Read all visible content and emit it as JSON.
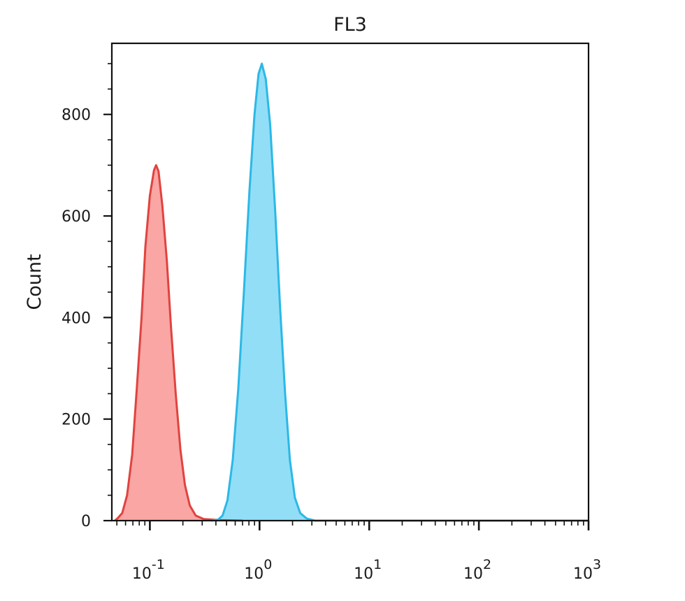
{
  "chart_data": {
    "type": "area",
    "title": "FL3",
    "xlabel": "",
    "ylabel": "Count",
    "x_scale": "log",
    "xlim": [
      0.045,
      1000
    ],
    "ylim": [
      0,
      940
    ],
    "grid": false,
    "legend": "none",
    "y_ticks": [
      {
        "value": 0,
        "label": "0"
      },
      {
        "value": 200,
        "label": "200"
      },
      {
        "value": 400,
        "label": "400"
      },
      {
        "value": 600,
        "label": "600"
      },
      {
        "value": 800,
        "label": "800"
      }
    ],
    "x_ticks": [
      {
        "value": 0.1,
        "base": "10",
        "exp": "-1"
      },
      {
        "value": 1,
        "base": "10",
        "exp": "0"
      },
      {
        "value": 10,
        "base": "10",
        "exp": "1"
      },
      {
        "value": 100,
        "base": "10",
        "exp": "2"
      },
      {
        "value": 1000,
        "base": "10",
        "exp": "3"
      }
    ],
    "series": [
      {
        "color": "#e0433f",
        "fill": "#f9a6a4",
        "points": [
          [
            0.048,
            0
          ],
          [
            0.051,
            5
          ],
          [
            0.056,
            15
          ],
          [
            0.062,
            50
          ],
          [
            0.069,
            130
          ],
          [
            0.076,
            260
          ],
          [
            0.084,
            400
          ],
          [
            0.091,
            540
          ],
          [
            0.1,
            640
          ],
          [
            0.109,
            690
          ],
          [
            0.114,
            700
          ],
          [
            0.12,
            688
          ],
          [
            0.13,
            620
          ],
          [
            0.143,
            510
          ],
          [
            0.156,
            380
          ],
          [
            0.172,
            250
          ],
          [
            0.19,
            140
          ],
          [
            0.209,
            70
          ],
          [
            0.231,
            30
          ],
          [
            0.262,
            10
          ],
          [
            0.31,
            3
          ],
          [
            0.44,
            1
          ],
          [
            0.7,
            0
          ]
        ]
      },
      {
        "color": "#2bb8e6",
        "fill": "#92def7",
        "points": [
          [
            0.36,
            0
          ],
          [
            0.42,
            2
          ],
          [
            0.46,
            10
          ],
          [
            0.51,
            40
          ],
          [
            0.57,
            120
          ],
          [
            0.64,
            260
          ],
          [
            0.72,
            450
          ],
          [
            0.81,
            650
          ],
          [
            0.9,
            800
          ],
          [
            0.98,
            880
          ],
          [
            1.05,
            900
          ],
          [
            1.14,
            870
          ],
          [
            1.25,
            780
          ],
          [
            1.39,
            610
          ],
          [
            1.54,
            420
          ],
          [
            1.71,
            250
          ],
          [
            1.89,
            120
          ],
          [
            2.1,
            45
          ],
          [
            2.35,
            15
          ],
          [
            2.7,
            4
          ],
          [
            3.2,
            0
          ],
          [
            1000,
            0
          ]
        ]
      }
    ]
  }
}
